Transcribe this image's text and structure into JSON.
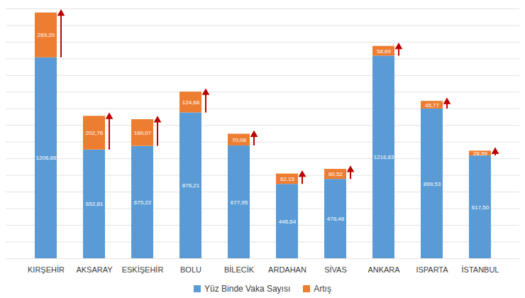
{
  "chart_data": {
    "type": "bar",
    "categories": [
      "KIRŞEHİR",
      "AKSARAY",
      "ESKİŞEHİR",
      "BOLU",
      "BİLECİK",
      "ARDAHAN",
      "SİVAS",
      "ANKARA",
      "ISPARTA",
      "İSTANBUL"
    ],
    "series": [
      {
        "name": "Yüz Binde Vaka Sayısı",
        "color": "#5b9bd5",
        "values": [
          1206.86,
          652.81,
          675.22,
          876.21,
          677.95,
          446.64,
          476.48,
          1216.83,
          899.53,
          617.5
        ],
        "value_labels": [
          "1206,86",
          "652,81",
          "675,22",
          "876,21",
          "677,95",
          "446,64",
          "476,48",
          "1216,83",
          "899,53",
          "617,50"
        ]
      },
      {
        "name": "Artış",
        "color": "#ed7d31",
        "values": [
          269.2,
          202.76,
          160.07,
          124.68,
          70.08,
          62.15,
          60.52,
          58.69,
          45.77,
          28.99
        ],
        "value_labels": [
          "269,20",
          "202,76",
          "160,07",
          "124,68",
          "70,08",
          "62,15",
          "60,52",
          "58,69",
          "45,77",
          "28,99"
        ]
      }
    ],
    "ylim": [
      0,
      1500
    ],
    "yticks": [
      0,
      100,
      200,
      300,
      400,
      500,
      600,
      700,
      800,
      900,
      1000,
      1100,
      1200,
      1300,
      1400,
      1500
    ],
    "grid": true,
    "stacked": true,
    "data_labels": true,
    "tick_labels": "x",
    "legend": "bottom"
  }
}
